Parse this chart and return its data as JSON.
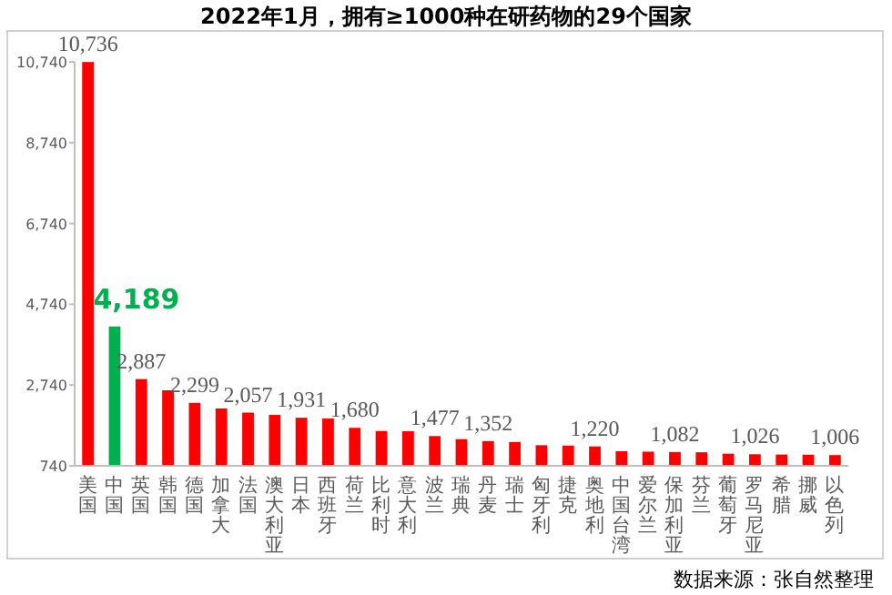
{
  "chart_data": {
    "type": "bar",
    "title": "2022年1月，拥有≥1000种在研药物的29个国家",
    "categories": [
      "美国",
      "中国",
      "英国",
      "韩国",
      "德国",
      "加拿大",
      "法国",
      "澳大利亚",
      "日本",
      "西班牙",
      "荷兰",
      "比利时",
      "意大利",
      "波兰",
      "瑞典",
      "丹麦",
      "瑞士",
      "匈牙利",
      "捷克",
      "奥地利",
      "中国台湾",
      "爱尔兰",
      "保加利亚",
      "芬兰",
      "葡萄牙",
      "罗马尼亚",
      "希腊",
      "挪威",
      "以色列"
    ],
    "values": [
      10736,
      4189,
      2887,
      2610,
      2299,
      2160,
      2057,
      2000,
      1931,
      1910,
      1680,
      1600,
      1595,
      1477,
      1400,
      1352,
      1330,
      1250,
      1240,
      1220,
      1100,
      1090,
      1082,
      1075,
      1040,
      1026,
      1020,
      1015,
      1006
    ],
    "colors": [
      "#ff0000",
      "#00b050",
      "#ff0000",
      "#ff0000",
      "#ff0000",
      "#ff0000",
      "#ff0000",
      "#ff0000",
      "#ff0000",
      "#ff0000",
      "#ff0000",
      "#ff0000",
      "#ff0000",
      "#ff0000",
      "#ff0000",
      "#ff0000",
      "#ff0000",
      "#ff0000",
      "#ff0000",
      "#ff0000",
      "#ff0000",
      "#ff0000",
      "#ff0000",
      "#ff0000",
      "#ff0000",
      "#ff0000",
      "#ff0000",
      "#ff0000",
      "#ff0000"
    ],
    "value_labels": [
      "10,736",
      null,
      "2,887",
      null,
      "2,299",
      null,
      "2,057",
      null,
      "1,931",
      null,
      "1,680",
      null,
      null,
      "1,477",
      null,
      "1,352",
      null,
      null,
      null,
      "1,220",
      null,
      null,
      "1,082",
      null,
      null,
      "1,026",
      null,
      null,
      "1,006"
    ],
    "annotations": [
      {
        "text": "4,189",
        "x": "中国",
        "y": 4189
      },
      "数据来源：张自然整理"
    ],
    "ylim": [
      740,
      10740
    ],
    "yticks": [
      {
        "value": 740,
        "label": "740"
      },
      {
        "value": 2740,
        "label": "2,740"
      },
      {
        "value": 4740,
        "label": "4,740"
      },
      {
        "value": 6740,
        "label": "6,740"
      },
      {
        "value": 8740,
        "label": "8,740"
      },
      {
        "value": 10740,
        "label": "10,740"
      }
    ],
    "grid": false
  }
}
